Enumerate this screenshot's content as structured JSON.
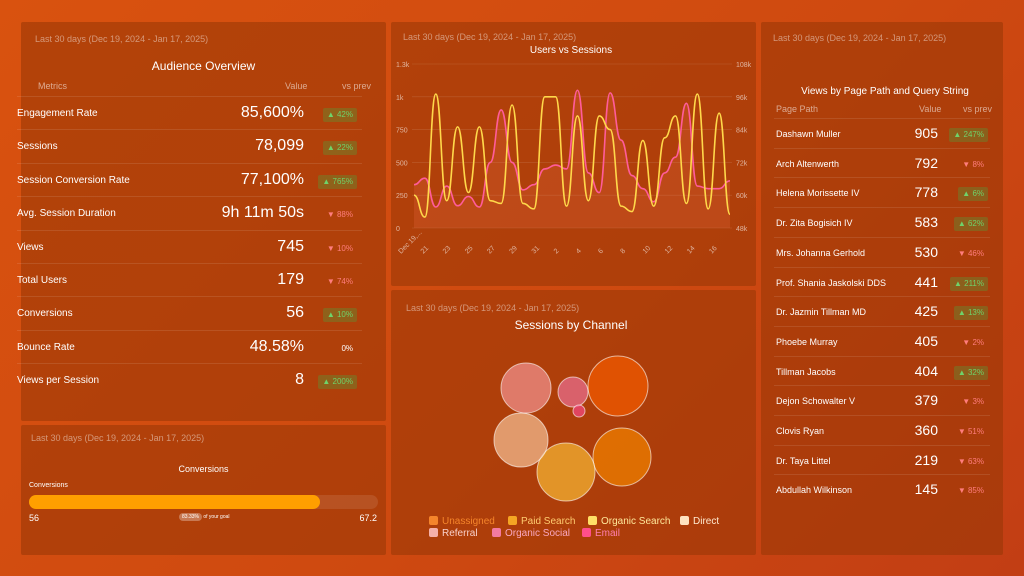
{
  "audience": {
    "date_range": "Last 30 days (Dec 19, 2024 - Jan 17, 2025)",
    "title": "Audience Overview",
    "col_metric": "Metrics",
    "col_value": "Value",
    "col_prev": "vs prev",
    "rows": [
      {
        "name": "Engagement Rate",
        "value": "85,600%",
        "change": "42%",
        "dir": "up"
      },
      {
        "name": "Sessions",
        "value": "78,099",
        "change": "22%",
        "dir": "up"
      },
      {
        "name": "Session Conversion Rate",
        "value": "77,100%",
        "change": "765%",
        "dir": "up"
      },
      {
        "name": "Avg. Session Duration",
        "value": "9h 11m 50s",
        "change": "88%",
        "dir": "down"
      },
      {
        "name": "Views",
        "value": "745",
        "change": "10%",
        "dir": "down"
      },
      {
        "name": "Total Users",
        "value": "179",
        "change": "74%",
        "dir": "down"
      },
      {
        "name": "Conversions",
        "value": "56",
        "change": "10%",
        "dir": "up"
      },
      {
        "name": "Bounce Rate",
        "value": "48.58%",
        "change": "0%",
        "dir": "flat"
      },
      {
        "name": "Views per Session",
        "value": "8",
        "change": "200%",
        "dir": "up"
      }
    ]
  },
  "conversions": {
    "date_range": "Last 30 days (Dec 19, 2024 - Jan 17, 2025)",
    "title": "Conversions",
    "label": "Conversions",
    "current": "56",
    "goal": "67.2",
    "progress": 0.8333,
    "goal_pct": "83.33%",
    "goal_text": "of your goal",
    "bar_color": "#ff9f00"
  },
  "users_sessions": {
    "date_range": "Last 30 days (Dec 19, 2024 - Jan 17, 2025)",
    "chart_data": {
      "type": "line",
      "title": "Users vs Sessions",
      "x_labels": [
        "Dec 19,...",
        "21",
        "23",
        "25",
        "27",
        "29",
        "31",
        "2",
        "4",
        "6",
        "8",
        "10",
        "12",
        "14",
        "16"
      ],
      "y_left_ticks": [
        "0",
        "250",
        "500",
        "750",
        "1k",
        "1.3k"
      ],
      "y_right_ticks": [
        "48k",
        "60k",
        "72k",
        "84k",
        "96k",
        "108k"
      ],
      "ylim_left": [
        0,
        1250
      ],
      "series": [
        {
          "axis": "left",
          "color": "#ff5c9a",
          "values": [
            330,
            380,
            160,
            320,
            170,
            240,
            160,
            500,
            900,
            500,
            290,
            330,
            450,
            480,
            450,
            1050,
            420,
            270,
            1030,
            670,
            400,
            300,
            200,
            420,
            540,
            950,
            320,
            300,
            300,
            360
          ]
        },
        {
          "axis": "right",
          "color": "#ffd84a",
          "values": [
            60,
            52,
            97,
            58,
            85,
            61,
            85,
            58,
            57,
            93,
            57,
            55,
            96,
            96,
            56,
            89,
            58,
            89,
            84,
            56,
            54,
            80,
            56,
            81,
            89,
            57,
            97,
            55,
            90,
            53
          ]
        }
      ]
    }
  },
  "channels": {
    "date_range": "Last 30 days (Dec 19, 2024 - Jan 17, 2025)",
    "title": "Sessions by Channel",
    "bubbles": [
      {
        "channel": "Unassigned",
        "color": "#f05a00",
        "r": 30,
        "cx": 618,
        "cy": 386
      },
      {
        "channel": "Paid Search",
        "color": "#ef7f00",
        "r": 29,
        "cx": 622,
        "cy": 457
      },
      {
        "channel": "Organic Search",
        "color": "#f3b233",
        "r": 29,
        "cx": 566,
        "cy": 472
      },
      {
        "channel": "Direct",
        "color": "#f1b98e",
        "r": 27,
        "cx": 521,
        "cy": 440
      },
      {
        "channel": "Referral",
        "color": "#ef8f8a",
        "r": 25,
        "cx": 526,
        "cy": 388
      },
      {
        "channel": "Organic Social",
        "color": "#e76d8c",
        "r": 15,
        "cx": 573,
        "cy": 392
      },
      {
        "channel": "Email",
        "color": "#f0487e",
        "r": 6,
        "cx": 579,
        "cy": 411
      }
    ],
    "legend": [
      {
        "label": "Unassigned",
        "color": "#f5852b",
        "text_color": "#f5852b"
      },
      {
        "label": "Paid Search",
        "color": "#f5a623",
        "text_color": "#ffcc70"
      },
      {
        "label": "Organic Search",
        "color": "#ffe066",
        "text_color": "#ffe89a"
      },
      {
        "label": "Direct",
        "color": "#ffe2bf",
        "text_color": "#ffe9cf"
      },
      {
        "label": "Referral",
        "color": "#f5b0a8",
        "text_color": "#f9d1cb"
      },
      {
        "label": "Organic Social",
        "color": "#f37aa0",
        "text_color": "#f9a7c0"
      },
      {
        "label": "Email",
        "color": "#ff4f8b",
        "text_color": "#ff7fae"
      }
    ]
  },
  "pages": {
    "date_range": "Last 30 days (Dec 19, 2024 - Jan 17, 2025)",
    "title": "Views by Page Path and Query String",
    "col_path": "Page Path",
    "col_value": "Value",
    "col_prev": "vs prev",
    "rows": [
      {
        "name": "Dashawn Muller",
        "value": "905",
        "change": "247%",
        "dir": "up"
      },
      {
        "name": "Arch Altenwerth",
        "value": "792",
        "change": "8%",
        "dir": "down"
      },
      {
        "name": "Helena Morissette IV",
        "value": "778",
        "change": "6%",
        "dir": "up"
      },
      {
        "name": "Dr. Zita Bogisich IV",
        "value": "583",
        "change": "62%",
        "dir": "up"
      },
      {
        "name": "Mrs. Johanna Gerhold",
        "value": "530",
        "change": "46%",
        "dir": "down"
      },
      {
        "name": "Prof. Shania Jaskolski DDS",
        "value": "441",
        "change": "211%",
        "dir": "up"
      },
      {
        "name": "Dr. Jazmin Tillman MD",
        "value": "425",
        "change": "13%",
        "dir": "up"
      },
      {
        "name": "Phoebe Murray",
        "value": "405",
        "change": "2%",
        "dir": "down"
      },
      {
        "name": "Tillman Jacobs",
        "value": "404",
        "change": "32%",
        "dir": "up"
      },
      {
        "name": "Dejon Schowalter V",
        "value": "379",
        "change": "3%",
        "dir": "down"
      },
      {
        "name": "Clovis Ryan",
        "value": "360",
        "change": "51%",
        "dir": "down"
      },
      {
        "name": "Dr. Taya Littel",
        "value": "219",
        "change": "63%",
        "dir": "down"
      },
      {
        "name": "Abdullah Wilkinson",
        "value": "145",
        "change": "85%",
        "dir": "down"
      }
    ]
  }
}
